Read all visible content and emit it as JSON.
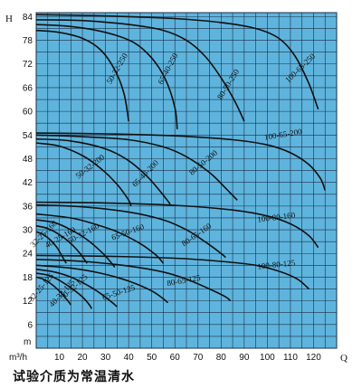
{
  "caption": "试验介质为常温清水",
  "chart_data": {
    "type": "line",
    "title": "",
    "xlabel": "Q",
    "ylabel": "H",
    "x_unit_label": "m³/h",
    "y_unit_label": "m",
    "xlim": [
      0,
      130
    ],
    "ylim": [
      0,
      85
    ],
    "x_ticks": [
      10,
      20,
      30,
      40,
      50,
      60,
      70,
      80,
      90,
      100,
      110,
      120
    ],
    "y_ticks": [
      6,
      12,
      18,
      24,
      30,
      36,
      42,
      48,
      54,
      60,
      66,
      72,
      78,
      84
    ],
    "grid": true,
    "colors": {
      "grid_fill": "#5fb4dd",
      "grid_line": "#1b2f45",
      "curve": "#111111"
    },
    "series": [
      {
        "name": "100-65-250",
        "label_at": [
          115,
          70.5
        ],
        "label_angle": -44,
        "points": [
          [
            0,
            84.5
          ],
          [
            20,
            84.3
          ],
          [
            40,
            84.0
          ],
          [
            60,
            83.5
          ],
          [
            80,
            82.5
          ],
          [
            95,
            81.0
          ],
          [
            105,
            78.5
          ],
          [
            112,
            74.0
          ],
          [
            118,
            67.0
          ],
          [
            122,
            60.5
          ]
        ]
      },
      {
        "name": "80-50-250",
        "label_at": [
          84,
          66.5
        ],
        "label_angle": -58,
        "points": [
          [
            0,
            83.2
          ],
          [
            20,
            83.0
          ],
          [
            40,
            82.0
          ],
          [
            55,
            80.5
          ],
          [
            65,
            78.0
          ],
          [
            73,
            74.0
          ],
          [
            80,
            68.5
          ],
          [
            86,
            62.5
          ],
          [
            90,
            57.5
          ]
        ]
      },
      {
        "name": "65-40-250",
        "label_at": [
          58,
          70.5
        ],
        "label_angle": -62,
        "points": [
          [
            0,
            82.0
          ],
          [
            15,
            81.5
          ],
          [
            30,
            80.0
          ],
          [
            42,
            77.5
          ],
          [
            50,
            73.5
          ],
          [
            56,
            68.0
          ],
          [
            60,
            61.0
          ],
          [
            61,
            55.5
          ]
        ]
      },
      {
        "name": "50-32-250",
        "label_at": [
          36,
          70.5
        ],
        "label_angle": -60,
        "points": [
          [
            0,
            80.5
          ],
          [
            10,
            80.0
          ],
          [
            20,
            78.5
          ],
          [
            28,
            75.5
          ],
          [
            34,
            70.5
          ],
          [
            38,
            64.5
          ],
          [
            40,
            57.5
          ]
        ]
      },
      {
        "name": "100-65-200",
        "label_at": [
          107,
          53.5
        ],
        "label_angle": -9,
        "points": [
          [
            0,
            54.5
          ],
          [
            30,
            54.3
          ],
          [
            60,
            53.8
          ],
          [
            85,
            52.8
          ],
          [
            100,
            51.5
          ],
          [
            110,
            49.5
          ],
          [
            118,
            46.5
          ],
          [
            123,
            43.0
          ],
          [
            125,
            40.0
          ]
        ]
      },
      {
        "name": "80-50-200",
        "label_at": [
          73,
          46.5
        ],
        "label_angle": -40,
        "points": [
          [
            0,
            54.0
          ],
          [
            20,
            53.6
          ],
          [
            40,
            52.8
          ],
          [
            55,
            51.0
          ],
          [
            65,
            48.5
          ],
          [
            75,
            44.5
          ],
          [
            82,
            40.5
          ],
          [
            87,
            37.5
          ]
        ]
      },
      {
        "name": "65-40-200",
        "label_at": [
          48,
          43.8
        ],
        "label_angle": -46,
        "points": [
          [
            0,
            53.0
          ],
          [
            15,
            52.5
          ],
          [
            30,
            50.5
          ],
          [
            40,
            47.5
          ],
          [
            48,
            43.5
          ],
          [
            54,
            39.5
          ],
          [
            58,
            36.5
          ]
        ]
      },
      {
        "name": "50-32-200",
        "label_at": [
          24,
          45.5
        ],
        "label_angle": -38,
        "points": [
          [
            0,
            52.0
          ],
          [
            10,
            51.2
          ],
          [
            20,
            48.8
          ],
          [
            28,
            45.5
          ],
          [
            35,
            41.5
          ],
          [
            40,
            37.5
          ],
          [
            41,
            36.0
          ]
        ]
      },
      {
        "name": "100-80-160",
        "label_at": [
          104,
          32.5
        ],
        "label_angle": -7,
        "points": [
          [
            0,
            37.0
          ],
          [
            30,
            36.8
          ],
          [
            60,
            36.2
          ],
          [
            85,
            35.0
          ],
          [
            100,
            33.5
          ],
          [
            110,
            31.5
          ],
          [
            118,
            28.5
          ],
          [
            122,
            25.5
          ]
        ]
      },
      {
        "name": "80-65-160",
        "label_at": [
          70,
          28.2
        ],
        "label_angle": -35,
        "points": [
          [
            0,
            36.3
          ],
          [
            20,
            35.8
          ],
          [
            40,
            34.5
          ],
          [
            55,
            32.5
          ],
          [
            65,
            30.0
          ],
          [
            73,
            27.0
          ],
          [
            80,
            24.0
          ],
          [
            82,
            23.0
          ]
        ]
      },
      {
        "name": "65-50-160",
        "label_at": [
          40,
          28.8
        ],
        "label_angle": -20,
        "points": [
          [
            0,
            34.0
          ],
          [
            15,
            33.0
          ],
          [
            25,
            31.5
          ],
          [
            35,
            29.5
          ],
          [
            45,
            26.5
          ],
          [
            52,
            23.5
          ],
          [
            55,
            21.5
          ]
        ]
      },
      {
        "name": "50-32-160",
        "label_at": [
          21,
          28.5
        ],
        "label_angle": -28,
        "points": [
          [
            0,
            32.5
          ],
          [
            8,
            31.8
          ],
          [
            15,
            30.0
          ],
          [
            22,
            27.5
          ],
          [
            28,
            24.5
          ],
          [
            32,
            22.0
          ],
          [
            34,
            20.5
          ]
        ]
      },
      {
        "name": "40-25-160",
        "label_at": [
          11,
          27.5
        ],
        "label_angle": -30,
        "points": [
          [
            0,
            31.0
          ],
          [
            5,
            30.3
          ],
          [
            10,
            28.8
          ],
          [
            15,
            26.5
          ],
          [
            19,
            24.0
          ],
          [
            22,
            21.5
          ]
        ]
      },
      {
        "name": "32-25-160",
        "label_at": [
          4,
          28.5
        ],
        "label_angle": -45,
        "points": [
          [
            0,
            29.5
          ],
          [
            3,
            28.8
          ],
          [
            6,
            27.5
          ],
          [
            9,
            25.5
          ],
          [
            11,
            23.5
          ],
          [
            13,
            21.5
          ]
        ]
      },
      {
        "name": "100-80-125",
        "label_at": [
          104,
          20.5
        ],
        "label_angle": -6,
        "points": [
          [
            0,
            23.5
          ],
          [
            30,
            23.3
          ],
          [
            60,
            22.8
          ],
          [
            80,
            22.0
          ],
          [
            95,
            21.0
          ],
          [
            105,
            19.5
          ],
          [
            113,
            17.5
          ],
          [
            118,
            15.0
          ]
        ]
      },
      {
        "name": "80-65-125",
        "label_at": [
          64,
          16.5
        ],
        "label_angle": -10,
        "points": [
          [
            0,
            22.5
          ],
          [
            20,
            22.0
          ],
          [
            40,
            20.8
          ],
          [
            55,
            19.3
          ],
          [
            65,
            17.5
          ],
          [
            75,
            15.0
          ],
          [
            82,
            13.0
          ],
          [
            84,
            12.0
          ]
        ]
      },
      {
        "name": "65-50-125",
        "label_at": [
          36,
          13.5
        ],
        "label_angle": -18,
        "points": [
          [
            0,
            21.0
          ],
          [
            15,
            20.3
          ],
          [
            28,
            19.0
          ],
          [
            40,
            17.0
          ],
          [
            50,
            14.5
          ],
          [
            55,
            12.5
          ],
          [
            57,
            11.5
          ]
        ]
      },
      {
        "name": "50-32-125",
        "label_at": [
          17,
          15.0
        ],
        "label_angle": -42,
        "points": [
          [
            0,
            20.0
          ],
          [
            8,
            19.3
          ],
          [
            15,
            18.0
          ],
          [
            22,
            16.0
          ],
          [
            28,
            13.8
          ],
          [
            33,
            11.5
          ],
          [
            35,
            10.5
          ]
        ]
      },
      {
        "name": "40-32-125",
        "label_at": [
          12,
          13.5
        ],
        "label_angle": -48,
        "points": [
          [
            0,
            19.0
          ],
          [
            5,
            18.5
          ],
          [
            10,
            17.2
          ],
          [
            15,
            15.3
          ],
          [
            20,
            13.0
          ],
          [
            23,
            11.0
          ],
          [
            24,
            10.0
          ]
        ]
      },
      {
        "name": "32-25-125",
        "label_at": [
          3,
          15.0
        ],
        "label_angle": -50,
        "points": [
          [
            0,
            18.0
          ],
          [
            3,
            17.5
          ],
          [
            6,
            16.5
          ],
          [
            10,
            14.5
          ],
          [
            13,
            12.5
          ],
          [
            15,
            11.0
          ]
        ]
      }
    ]
  }
}
